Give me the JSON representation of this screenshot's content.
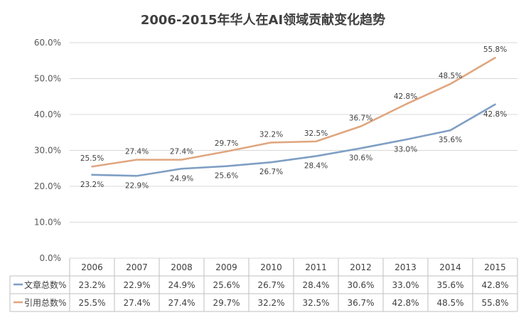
{
  "chart_data": {
    "type": "line",
    "title": "2006-2015年华人在AI领域贡献变化趋势",
    "categories": [
      "2006",
      "2007",
      "2008",
      "2009",
      "2010",
      "2011",
      "2012",
      "2013",
      "2014",
      "2015"
    ],
    "y_ticks": [
      "0.0%",
      "10.0%",
      "20.0%",
      "30.0%",
      "40.0%",
      "50.0%",
      "60.0%"
    ],
    "ylim": [
      0,
      60
    ],
    "grid": true,
    "legend": "data-table",
    "series": [
      {
        "name": "文章总数%",
        "color": "#7f9fc4",
        "values": [
          23.2,
          22.9,
          24.9,
          25.6,
          26.7,
          28.4,
          30.6,
          33.0,
          35.6,
          42.8
        ],
        "labels": [
          "23.2%",
          "22.9%",
          "24.9%",
          "25.6%",
          "26.7%",
          "28.4%",
          "30.6%",
          "33.0%",
          "35.6%",
          "42.8%"
        ]
      },
      {
        "name": "引用总数%",
        "color": "#e0a67f",
        "values": [
          25.5,
          27.4,
          27.4,
          29.7,
          32.2,
          32.5,
          36.7,
          42.8,
          48.5,
          55.8
        ],
        "labels": [
          "25.5%",
          "27.4%",
          "27.4%",
          "29.7%",
          "32.2%",
          "32.5%",
          "36.7%",
          "42.8%",
          "48.5%",
          "55.8%"
        ]
      }
    ]
  }
}
